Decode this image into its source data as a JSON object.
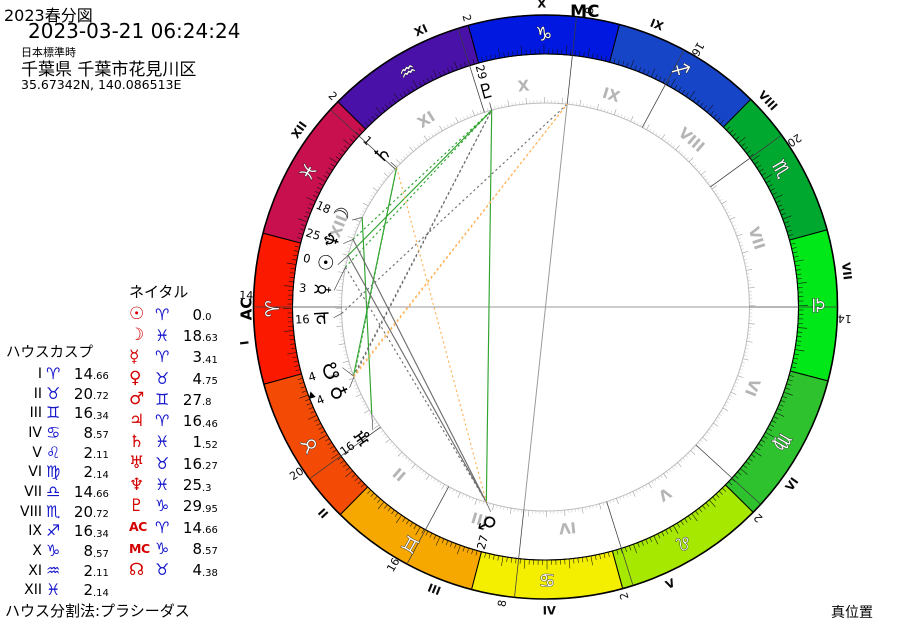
{
  "header": {
    "title": "2023春分図",
    "datetime": "2023-03-21 06:24:24",
    "timezone": "日本標準時",
    "place": "千葉県 千葉市花見川区",
    "coords": "35.67342N, 140.086513E"
  },
  "cusp_panel": {
    "heading": "ハウスカスプ",
    "rows": [
      {
        "num": "I",
        "sign": "♈",
        "deg": "14",
        "frac": "66"
      },
      {
        "num": "II",
        "sign": "♉",
        "deg": "20",
        "frac": "72"
      },
      {
        "num": "III",
        "sign": "♊",
        "deg": "16",
        "frac": "34"
      },
      {
        "num": "IV",
        "sign": "♋",
        "deg": "8",
        "frac": "57"
      },
      {
        "num": "V",
        "sign": "♌",
        "deg": "2",
        "frac": "11"
      },
      {
        "num": "VI",
        "sign": "♍",
        "deg": "2",
        "frac": "14"
      },
      {
        "num": "VII",
        "sign": "♎",
        "deg": "14",
        "frac": "66"
      },
      {
        "num": "VIII",
        "sign": "♏",
        "deg": "20",
        "frac": "72"
      },
      {
        "num": "IX",
        "sign": "♐",
        "deg": "16",
        "frac": "34"
      },
      {
        "num": "X",
        "sign": "♑",
        "deg": "8",
        "frac": "57"
      },
      {
        "num": "XI",
        "sign": "♒",
        "deg": "2",
        "frac": "11"
      },
      {
        "num": "XII",
        "sign": "♓",
        "deg": "2",
        "frac": "14"
      }
    ]
  },
  "natal_panel": {
    "heading": "ネイタル",
    "rows": [
      {
        "name": "sun",
        "glyph": "☉",
        "sign": "♈",
        "deg": "0",
        "frac": "0",
        "axis": false
      },
      {
        "name": "moon",
        "glyph": "☽",
        "sign": "♓",
        "deg": "18",
        "frac": "63",
        "axis": false
      },
      {
        "name": "mercury",
        "glyph": "☿",
        "sign": "♈",
        "deg": "3",
        "frac": "41",
        "axis": false
      },
      {
        "name": "venus",
        "glyph": "♀",
        "sign": "♉",
        "deg": "4",
        "frac": "75",
        "axis": false
      },
      {
        "name": "mars",
        "glyph": "♂",
        "sign": "♊",
        "deg": "27",
        "frac": "8",
        "axis": false
      },
      {
        "name": "jupiter",
        "glyph": "♃",
        "sign": "♈",
        "deg": "16",
        "frac": "46",
        "axis": false
      },
      {
        "name": "saturn",
        "glyph": "♄",
        "sign": "♓",
        "deg": "1",
        "frac": "52",
        "axis": false
      },
      {
        "name": "uranus",
        "glyph": "♅",
        "sign": "♉",
        "deg": "16",
        "frac": "27",
        "axis": false
      },
      {
        "name": "neptune",
        "glyph": "♆",
        "sign": "♓",
        "deg": "25",
        "frac": "3",
        "axis": false
      },
      {
        "name": "pluto",
        "glyph": "♇",
        "sign": "♑",
        "deg": "29",
        "frac": "95",
        "axis": false
      },
      {
        "name": "ac",
        "glyph": "AC",
        "sign": "♈",
        "deg": "14",
        "frac": "66",
        "axis": true
      },
      {
        "name": "mc",
        "glyph": "MC",
        "sign": "♑",
        "deg": "8",
        "frac": "57",
        "axis": true
      },
      {
        "name": "node",
        "glyph": "☊",
        "sign": "♉",
        "deg": "4",
        "frac": "38",
        "axis": false
      }
    ]
  },
  "footer": {
    "method": "ハウス分割法:プラシーダス",
    "position_type": "真位置"
  },
  "chart_data": {
    "type": "astrology-wheel",
    "ascendant_lon": 14.66,
    "mc_lon": 278.57,
    "axis_labels": {
      "ac": "AC",
      "mc": "MC"
    },
    "signs": [
      {
        "name": "aries",
        "glyph": "♈",
        "color": "#FB1A00"
      },
      {
        "name": "taurus",
        "glyph": "♉",
        "color": "#F34A05"
      },
      {
        "name": "gemini",
        "glyph": "♊",
        "color": "#F7A800"
      },
      {
        "name": "cancer",
        "glyph": "♋",
        "color": "#F4EE00"
      },
      {
        "name": "leo",
        "glyph": "♌",
        "color": "#A6E800"
      },
      {
        "name": "virgo",
        "glyph": "♍",
        "color": "#2EC32E"
      },
      {
        "name": "libra",
        "glyph": "♎",
        "color": "#00E818"
      },
      {
        "name": "scorpio",
        "glyph": "♏",
        "color": "#00A830"
      },
      {
        "name": "sagittarius",
        "glyph": "♐",
        "color": "#1745C8"
      },
      {
        "name": "capricorn",
        "glyph": "♑",
        "color": "#0018E0"
      },
      {
        "name": "aquarius",
        "glyph": "♒",
        "color": "#4911A8"
      },
      {
        "name": "pisces",
        "glyph": "♓",
        "color": "#C8104E"
      }
    ],
    "houses": [
      {
        "num": "I",
        "lon": 14.66,
        "deg_label": "14"
      },
      {
        "num": "II",
        "lon": 50.72,
        "deg_label": "20"
      },
      {
        "num": "III",
        "lon": 76.34,
        "deg_label": "16"
      },
      {
        "num": "IV",
        "lon": 98.57,
        "deg_label": "8"
      },
      {
        "num": "V",
        "lon": 122.11,
        "deg_label": "2"
      },
      {
        "num": "VI",
        "lon": 152.14,
        "deg_label": "2"
      },
      {
        "num": "VII",
        "lon": 194.66,
        "deg_label": "14"
      },
      {
        "num": "VIII",
        "lon": 230.72,
        "deg_label": "20"
      },
      {
        "num": "IX",
        "lon": 256.34,
        "deg_label": "16"
      },
      {
        "num": "X",
        "lon": 278.57,
        "deg_label": "8"
      },
      {
        "num": "XI",
        "lon": 302.11,
        "deg_label": "2"
      },
      {
        "num": "XII",
        "lon": 332.14,
        "deg_label": "2"
      }
    ],
    "planets": [
      {
        "name": "sun",
        "glyph": "☉",
        "lon": 0.0,
        "display_lon": 3.16,
        "deg_label": "0"
      },
      {
        "name": "moon",
        "glyph": "☽",
        "lon": 348.63,
        "display_lon": 350.46,
        "deg_label": "18"
      },
      {
        "name": "mercury",
        "glyph": "☿",
        "lon": 3.41,
        "display_lon": 10.16,
        "deg_label": "3"
      },
      {
        "name": "venus",
        "glyph": "♀",
        "lon": 34.75,
        "display_lon": 37.06,
        "deg_label": "4"
      },
      {
        "name": "mars",
        "glyph": "♂",
        "lon": 87.8,
        "display_lon": 89.66,
        "deg_label": "27"
      },
      {
        "name": "jupiter",
        "glyph": "♃",
        "lon": 16.46,
        "display_lon": 17.56,
        "deg_label": "16"
      },
      {
        "name": "saturn",
        "glyph": "♄",
        "lon": 331.52,
        "display_lon": 331.56,
        "deg_label": "1"
      },
      {
        "name": "uranus",
        "glyph": "♅",
        "lon": 46.27,
        "display_lon": 50.16,
        "deg_label": "16"
      },
      {
        "name": "neptune",
        "glyph": "♆",
        "lon": 355.3,
        "display_lon": 357.26,
        "deg_label": "25"
      },
      {
        "name": "pluto",
        "glyph": "♇",
        "lon": 299.95,
        "display_lon": 299.95,
        "deg_label": "29"
      },
      {
        "name": "node",
        "glyph": "☊",
        "lon": 34.38,
        "display_lon": 31.26,
        "deg_label": "4",
        "marker": "▲"
      }
    ],
    "aspects": [
      {
        "a": "sun",
        "b": "pluto",
        "type": "sextile",
        "style": "solid"
      },
      {
        "a": "moon",
        "b": "uranus",
        "type": "sextile",
        "style": "solid"
      },
      {
        "a": "node",
        "b": "saturn",
        "type": "sextile",
        "style": "solid"
      },
      {
        "a": "mercury",
        "b": "pluto",
        "type": "sextile",
        "style": "dotted"
      },
      {
        "a": "neptune",
        "b": "pluto",
        "type": "sextile",
        "style": "dotted"
      },
      {
        "a": "venus",
        "b": "saturn",
        "type": "sextile",
        "style": "dotted"
      },
      {
        "a": "mars",
        "b": "pluto",
        "type": "quincunx",
        "style": "solid"
      },
      {
        "a": "sun",
        "b": "mars",
        "type": "square",
        "style": "solid"
      },
      {
        "a": "neptune",
        "b": "mars",
        "type": "square",
        "style": "solid"
      },
      {
        "a": "mercury",
        "b": "mars",
        "type": "square",
        "style": "dotted"
      },
      {
        "a": "venus",
        "b": "pluto",
        "type": "square",
        "style": "dotted"
      },
      {
        "a": "node",
        "b": "pluto",
        "type": "square",
        "style": "dotted"
      },
      {
        "a": "jupiter",
        "b": "MC",
        "type": "square",
        "style": "dotted"
      },
      {
        "a": "saturn",
        "b": "mars",
        "type": "trine",
        "style": "dotted"
      },
      {
        "a": "venus",
        "b": "MC",
        "type": "trine",
        "style": "dotted"
      },
      {
        "a": "node",
        "b": "MC",
        "type": "trine",
        "style": "dotted"
      }
    ],
    "aspect_colors": {
      "sextile": "#2FA32F",
      "square": "#6E6E6E",
      "trine": "#FFB45A",
      "quincunx": "#2FA32F"
    }
  }
}
